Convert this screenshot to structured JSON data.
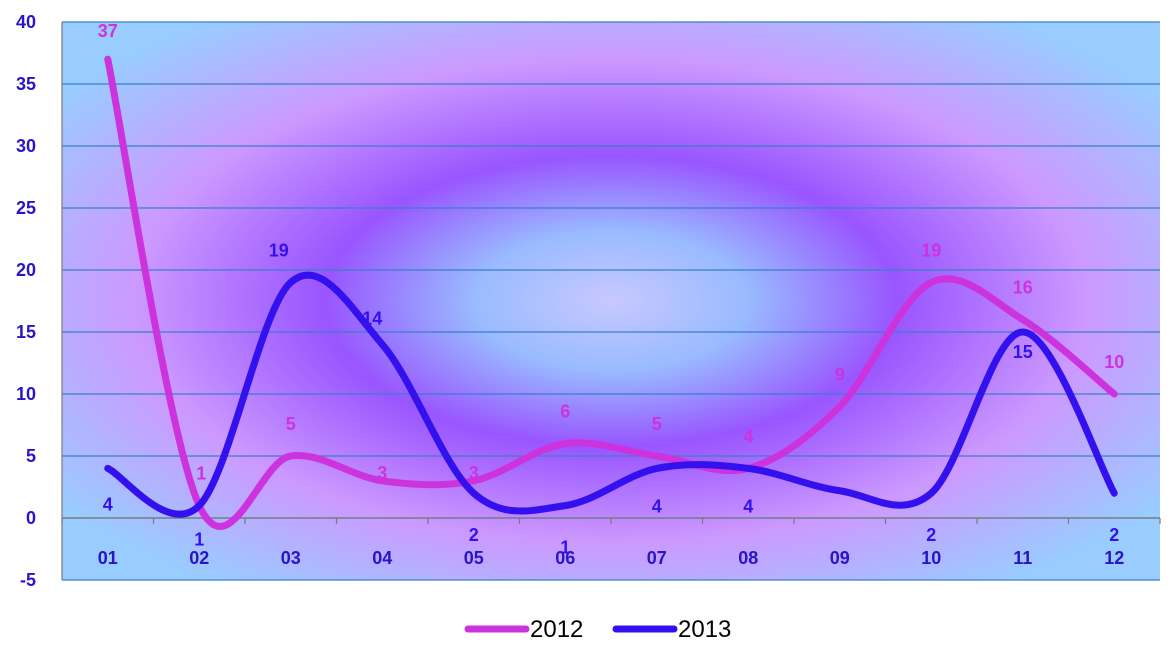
{
  "chart_data": {
    "type": "line",
    "title": "",
    "xlabel": "",
    "ylabel": "",
    "categories": [
      "01",
      "02",
      "03",
      "04",
      "05",
      "06",
      "07",
      "08",
      "09",
      "10",
      "11",
      "12"
    ],
    "ylim": [
      -5,
      40
    ],
    "yticks": [
      -5,
      0,
      5,
      10,
      15,
      20,
      25,
      30,
      35,
      40
    ],
    "grid": true,
    "smooth": true,
    "legend_position": "bottom",
    "series": [
      {
        "name": "2012",
        "color": "#cc33dd",
        "values": [
          37,
          1,
          5,
          3,
          3,
          6,
          5,
          4,
          9,
          19,
          16,
          10
        ]
      },
      {
        "name": "2013",
        "color": "#3311ee",
        "values": [
          4,
          1,
          19,
          14,
          2,
          1,
          4,
          4,
          null,
          2,
          15,
          2
        ]
      }
    ]
  }
}
